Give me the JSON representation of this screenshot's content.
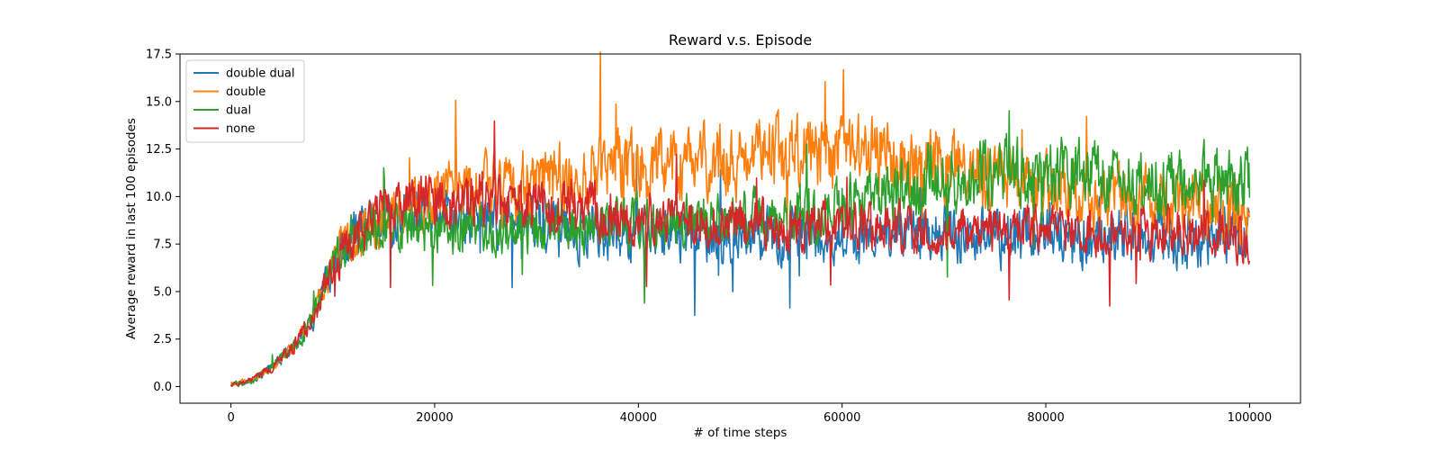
{
  "chart_data": {
    "type": "line",
    "title": "Reward v.s. Episode",
    "xlabel": "# of time steps",
    "ylabel": "Average reward in last 100 episodes",
    "xlim": [
      -5000,
      105000
    ],
    "ylim": [
      -0.875,
      17.5
    ],
    "xticks": [
      0,
      20000,
      40000,
      60000,
      80000,
      100000
    ],
    "xtick_labels": [
      "0",
      "20000",
      "40000",
      "60000",
      "80000",
      "100000"
    ],
    "yticks": [
      0,
      2.5,
      5,
      7.5,
      10,
      12.5,
      15,
      17.5
    ],
    "ytick_labels": [
      "0.0",
      "2.5",
      "5.0",
      "7.5",
      "10.0",
      "12.5",
      "15.0",
      "17.5"
    ],
    "grid": false,
    "legend_position": "top-left",
    "series": [
      {
        "name": "double dual",
        "color": "#1f77b4",
        "x": [
          0,
          2000,
          4000,
          6000,
          8000,
          10000,
          12000,
          14000,
          16000,
          18000,
          20000,
          25000,
          30000,
          35000,
          40000,
          45000,
          50000,
          55000,
          60000,
          65000,
          70000,
          75000,
          80000,
          85000,
          90000,
          95000,
          100000
        ],
        "y": [
          0.1,
          0.3,
          1.0,
          2.0,
          3.5,
          6.5,
          8.0,
          8.6,
          8.8,
          9.0,
          9.0,
          8.6,
          8.3,
          8.2,
          8.1,
          8.0,
          8.0,
          8.0,
          8.1,
          8.1,
          8.1,
          8.0,
          7.9,
          7.9,
          7.9,
          7.9,
          8.0
        ],
        "noise": [
          0.1,
          0.15,
          0.25,
          0.35,
          0.6,
          1.0,
          1.2,
          1.3,
          1.3,
          1.3,
          1.3,
          1.4,
          1.4,
          1.4,
          1.4,
          1.4,
          1.4,
          1.4,
          1.4,
          1.4,
          1.4,
          1.5,
          1.6,
          1.6,
          1.5,
          1.5,
          1.5
        ]
      },
      {
        "name": "double",
        "color": "#ff7f0e",
        "x": [
          0,
          2000,
          4000,
          6000,
          8000,
          10000,
          12000,
          14000,
          16000,
          18000,
          20000,
          25000,
          30000,
          35000,
          40000,
          45000,
          50000,
          55000,
          60000,
          65000,
          70000,
          75000,
          80000,
          85000,
          90000,
          95000,
          100000
        ],
        "y": [
          0.1,
          0.3,
          1.0,
          2.0,
          3.5,
          6.5,
          7.8,
          8.5,
          9.0,
          9.5,
          9.8,
          10.2,
          10.6,
          11.2,
          11.5,
          11.8,
          12.0,
          12.3,
          12.4,
          11.9,
          11.6,
          11.0,
          10.5,
          10.2,
          9.8,
          9.5,
          9.0
        ],
        "noise": [
          0.1,
          0.15,
          0.25,
          0.35,
          0.6,
          1.0,
          1.2,
          1.3,
          1.4,
          1.5,
          1.6,
          1.8,
          1.8,
          1.9,
          1.9,
          1.9,
          1.9,
          2.0,
          2.0,
          1.9,
          1.8,
          1.7,
          1.6,
          1.6,
          1.6,
          1.6,
          1.8
        ]
      },
      {
        "name": "dual",
        "color": "#2ca02c",
        "x": [
          0,
          2000,
          4000,
          6000,
          8000,
          10000,
          12000,
          14000,
          16000,
          18000,
          20000,
          25000,
          30000,
          35000,
          40000,
          45000,
          50000,
          55000,
          60000,
          65000,
          70000,
          75000,
          80000,
          85000,
          90000,
          95000,
          100000
        ],
        "y": [
          0.1,
          0.3,
          1.0,
          2.0,
          3.5,
          6.5,
          7.8,
          8.3,
          8.5,
          8.5,
          8.4,
          8.3,
          8.3,
          8.4,
          8.6,
          8.7,
          8.8,
          9.0,
          9.4,
          10.2,
          11.0,
          11.3,
          11.2,
          11.0,
          10.8,
          10.8,
          10.5
        ],
        "noise": [
          0.1,
          0.15,
          0.25,
          0.35,
          0.6,
          1.0,
          1.2,
          1.3,
          1.3,
          1.3,
          1.3,
          1.3,
          1.3,
          1.3,
          1.4,
          1.4,
          1.4,
          1.5,
          1.6,
          1.7,
          1.7,
          1.7,
          1.7,
          1.7,
          1.7,
          1.7,
          1.9
        ]
      },
      {
        "name": "none",
        "color": "#d62728",
        "x": [
          0,
          2000,
          4000,
          6000,
          8000,
          10000,
          12000,
          14000,
          16000,
          18000,
          20000,
          25000,
          30000,
          35000,
          40000,
          45000,
          50000,
          55000,
          60000,
          65000,
          70000,
          75000,
          80000,
          85000,
          90000,
          95000,
          100000
        ],
        "y": [
          0.1,
          0.3,
          1.0,
          2.0,
          3.5,
          6.5,
          7.8,
          8.8,
          9.3,
          9.8,
          10.0,
          9.8,
          9.5,
          9.3,
          9.1,
          8.8,
          8.6,
          8.5,
          8.5,
          8.3,
          8.3,
          8.3,
          8.2,
          8.2,
          8.2,
          8.2,
          7.8
        ],
        "noise": [
          0.1,
          0.15,
          0.25,
          0.35,
          0.6,
          1.0,
          1.2,
          1.3,
          1.3,
          1.4,
          1.5,
          1.5,
          1.4,
          1.4,
          1.3,
          1.3,
          1.2,
          1.2,
          1.2,
          1.2,
          1.2,
          1.2,
          1.2,
          1.2,
          1.2,
          1.2,
          1.2
        ]
      }
    ]
  }
}
